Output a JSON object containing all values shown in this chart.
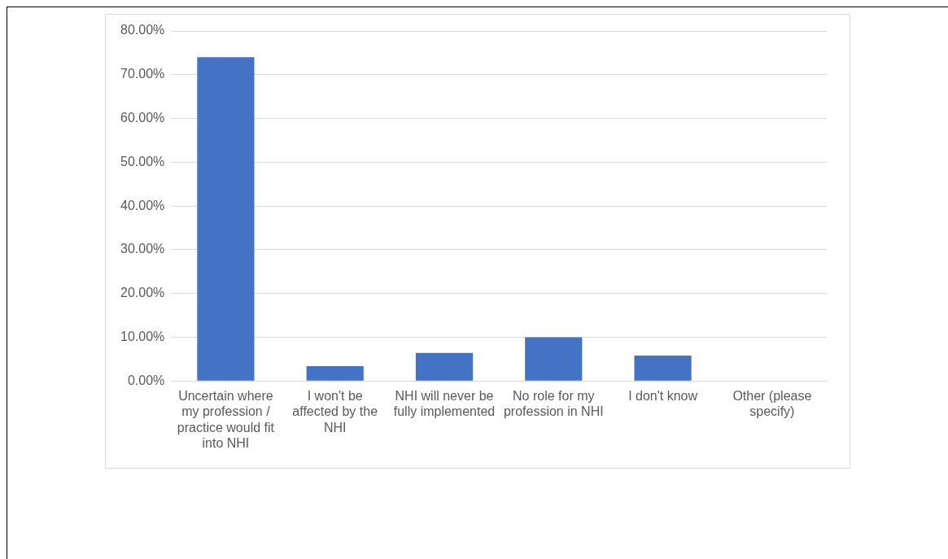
{
  "chart_data": {
    "type": "bar",
    "categories": [
      "Uncertain where my profession / practice would fit into NHI",
      "I won't be affected by the NHI",
      "NHI will never be fully implemented",
      "No role for my profession in NHI",
      "I don't know",
      "Other (please specify)"
    ],
    "values": [
      74.0,
      3.4,
      6.4,
      10.0,
      5.8,
      0
    ],
    "color": "#4472c4",
    "ylim": [
      0,
      80
    ],
    "yticks": [
      {
        "value": 0,
        "label": "0.00%"
      },
      {
        "value": 10,
        "label": "10.00%"
      },
      {
        "value": 20,
        "label": "20.00%"
      },
      {
        "value": 30,
        "label": "30.00%"
      },
      {
        "value": 40,
        "label": "40.00%"
      },
      {
        "value": 50,
        "label": "50.00%"
      },
      {
        "value": 60,
        "label": "60.00%"
      },
      {
        "value": 70,
        "label": "70.00%"
      },
      {
        "value": 80,
        "label": "80.00%"
      }
    ],
    "grid": "y"
  }
}
